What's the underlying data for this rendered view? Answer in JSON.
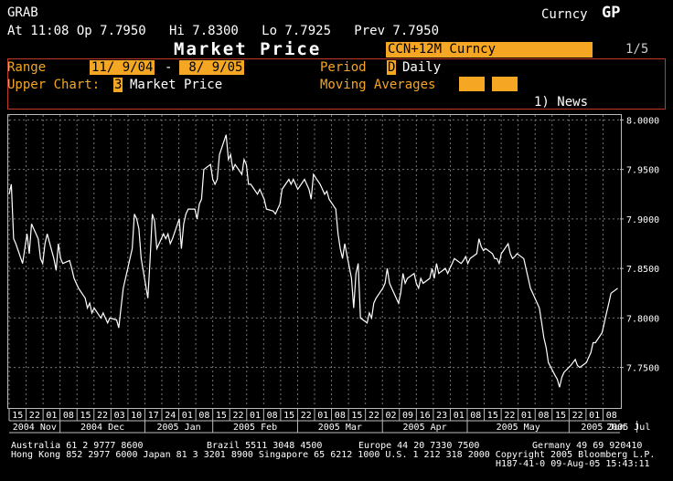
{
  "header": {
    "ticker": "GRAB",
    "security": "Curncy",
    "function": "GP",
    "quote": "At 11:08 Op 7.7950   Hi 7.8300   Lo 7.7925   Prev 7.7950",
    "title": "Market Price",
    "security_box": "CCN+12M Curncy",
    "page": "1/5"
  },
  "controls": {
    "range_label": "Range",
    "range_start": "11/ 9/04",
    "range_sep": "-",
    "range_end": " 8/ 9/05",
    "period_label": "Period",
    "period_code": "D",
    "period_value": "Daily",
    "upper_label": "Upper Chart:",
    "upper_code": "3",
    "upper_value": "Market Price",
    "ma_label": "Moving Averages",
    "news": "1) News"
  },
  "chart_data": {
    "type": "line",
    "y_ticks": [
      "8.0000",
      "7.9500",
      "7.9000",
      "7.8500",
      "7.8000",
      "7.7500"
    ],
    "ylim": [
      7.71,
      8.005
    ],
    "day_ticks": [
      "15",
      "22",
      "01",
      "08",
      "15",
      "22",
      "03",
      "10",
      "17",
      "24",
      "01",
      "08",
      "15",
      "22",
      "01",
      "08",
      "15",
      "22",
      "01",
      "08",
      "15",
      "22",
      "02",
      "09",
      "16",
      "23",
      "01",
      "08",
      "15",
      "22",
      "01",
      "08",
      "15",
      "22",
      "01",
      "08"
    ],
    "months": [
      "2004 Nov",
      "2004 Dec",
      "2005 Jan",
      "2005 Feb",
      "2005 Mar",
      "2005 Apr",
      "2005 May",
      "2005 Jun",
      "2005 Jul"
    ],
    "x_range": [
      "2004-11-09",
      "2005-08-09"
    ],
    "series": [
      {
        "name": "",
        "points": [
          [
            "2004-11-09",
            7.925
          ],
          [
            "2004-11-10",
            7.935
          ],
          [
            "2004-11-11",
            7.88
          ],
          [
            "2004-11-12",
            7.875
          ],
          [
            "2004-11-15",
            7.855
          ],
          [
            "2004-11-16",
            7.87
          ],
          [
            "2004-11-17",
            7.885
          ],
          [
            "2004-11-18",
            7.865
          ],
          [
            "2004-11-19",
            7.895
          ],
          [
            "2004-11-22",
            7.88
          ],
          [
            "2004-11-23",
            7.86
          ],
          [
            "2004-11-24",
            7.855
          ],
          [
            "2004-11-25",
            7.875
          ],
          [
            "2004-11-26",
            7.885
          ],
          [
            "2004-11-29",
            7.86
          ],
          [
            "2004-11-30",
            7.848
          ],
          [
            "2004-12-01",
            7.875
          ],
          [
            "2004-12-02",
            7.86
          ],
          [
            "2004-12-03",
            7.855
          ],
          [
            "2004-12-06",
            7.858
          ],
          [
            "2004-12-07",
            7.85
          ],
          [
            "2004-12-08",
            7.84
          ],
          [
            "2004-12-09",
            7.835
          ],
          [
            "2004-12-10",
            7.83
          ],
          [
            "2004-12-13",
            7.82
          ],
          [
            "2004-12-14",
            7.81
          ],
          [
            "2004-12-15",
            7.815
          ],
          [
            "2004-12-16",
            7.805
          ],
          [
            "2004-12-17",
            7.81
          ],
          [
            "2004-12-20",
            7.8
          ],
          [
            "2004-12-21",
            7.805
          ],
          [
            "2004-12-22",
            7.8
          ],
          [
            "2004-12-23",
            7.795
          ],
          [
            "2004-12-24",
            7.8
          ],
          [
            "2004-12-27",
            7.798
          ],
          [
            "2004-12-28",
            7.79
          ],
          [
            "2004-12-29",
            7.81
          ],
          [
            "2004-12-30",
            7.83
          ],
          [
            "2005-01-03",
            7.87
          ],
          [
            "2005-01-04",
            7.905
          ],
          [
            "2005-01-05",
            7.9
          ],
          [
            "2005-01-06",
            7.89
          ],
          [
            "2005-01-07",
            7.86
          ],
          [
            "2005-01-10",
            7.82
          ],
          [
            "2005-01-11",
            7.86
          ],
          [
            "2005-01-12",
            7.905
          ],
          [
            "2005-01-13",
            7.898
          ],
          [
            "2005-01-14",
            7.87
          ],
          [
            "2005-01-17",
            7.885
          ],
          [
            "2005-01-18",
            7.88
          ],
          [
            "2005-01-19",
            7.885
          ],
          [
            "2005-01-20",
            7.875
          ],
          [
            "2005-01-21",
            7.88
          ],
          [
            "2005-01-24",
            7.9
          ],
          [
            "2005-01-25",
            7.87
          ],
          [
            "2005-01-26",
            7.895
          ],
          [
            "2005-01-27",
            7.905
          ],
          [
            "2005-01-28",
            7.91
          ],
          [
            "2005-01-31",
            7.91
          ],
          [
            "2005-02-01",
            7.9
          ],
          [
            "2005-02-02",
            7.915
          ],
          [
            "2005-02-03",
            7.92
          ],
          [
            "2005-02-04",
            7.95
          ],
          [
            "2005-02-07",
            7.955
          ],
          [
            "2005-02-08",
            7.94
          ],
          [
            "2005-02-09",
            7.935
          ],
          [
            "2005-02-10",
            7.94
          ],
          [
            "2005-02-11",
            7.965
          ],
          [
            "2005-02-14",
            7.985
          ],
          [
            "2005-02-15",
            7.96
          ],
          [
            "2005-02-16",
            7.965
          ],
          [
            "2005-02-17",
            7.95
          ],
          [
            "2005-02-18",
            7.955
          ],
          [
            "2005-02-21",
            7.945
          ],
          [
            "2005-02-22",
            7.96
          ],
          [
            "2005-02-23",
            7.955
          ],
          [
            "2005-02-24",
            7.935
          ],
          [
            "2005-02-25",
            7.935
          ],
          [
            "2005-02-28",
            7.925
          ],
          [
            "2005-03-01",
            7.93
          ],
          [
            "2005-03-02",
            7.925
          ],
          [
            "2005-03-03",
            7.92
          ],
          [
            "2005-03-04",
            7.91
          ],
          [
            "2005-03-07",
            7.908
          ],
          [
            "2005-03-08",
            7.905
          ],
          [
            "2005-03-09",
            7.91
          ],
          [
            "2005-03-10",
            7.915
          ],
          [
            "2005-03-11",
            7.93
          ],
          [
            "2005-03-14",
            7.94
          ],
          [
            "2005-03-15",
            7.935
          ],
          [
            "2005-03-16",
            7.94
          ],
          [
            "2005-03-17",
            7.935
          ],
          [
            "2005-03-18",
            7.93
          ],
          [
            "2005-03-21",
            7.94
          ],
          [
            "2005-03-22",
            7.935
          ],
          [
            "2005-03-23",
            7.93
          ],
          [
            "2005-03-24",
            7.92
          ],
          [
            "2005-03-25",
            7.945
          ],
          [
            "2005-03-28",
            7.935
          ],
          [
            "2005-03-29",
            7.93
          ],
          [
            "2005-03-30",
            7.925
          ],
          [
            "2005-03-31",
            7.928
          ],
          [
            "2005-04-01",
            7.92
          ],
          [
            "2005-04-04",
            7.91
          ],
          [
            "2005-04-05",
            7.885
          ],
          [
            "2005-04-06",
            7.87
          ],
          [
            "2005-04-07",
            7.86
          ],
          [
            "2005-04-08",
            7.875
          ],
          [
            "2005-04-11",
            7.84
          ],
          [
            "2005-04-12",
            7.81
          ],
          [
            "2005-04-13",
            7.845
          ],
          [
            "2005-04-14",
            7.855
          ],
          [
            "2005-04-15",
            7.8
          ],
          [
            "2005-04-18",
            7.795
          ],
          [
            "2005-04-19",
            7.805
          ],
          [
            "2005-04-20",
            7.8
          ],
          [
            "2005-04-21",
            7.815
          ],
          [
            "2005-04-22",
            7.82
          ],
          [
            "2005-04-25",
            7.83
          ],
          [
            "2005-04-26",
            7.835
          ],
          [
            "2005-04-27",
            7.85
          ],
          [
            "2005-04-28",
            7.835
          ],
          [
            "2005-04-29",
            7.83
          ],
          [
            "2005-05-02",
            7.815
          ],
          [
            "2005-05-03",
            7.825
          ],
          [
            "2005-05-04",
            7.845
          ],
          [
            "2005-05-05",
            7.835
          ],
          [
            "2005-05-06",
            7.84
          ],
          [
            "2005-05-09",
            7.845
          ],
          [
            "2005-05-10",
            7.835
          ],
          [
            "2005-05-11",
            7.83
          ],
          [
            "2005-05-12",
            7.84
          ],
          [
            "2005-05-13",
            7.835
          ],
          [
            "2005-05-16",
            7.84
          ],
          [
            "2005-05-17",
            7.85
          ],
          [
            "2005-05-18",
            7.84
          ],
          [
            "2005-05-19",
            7.855
          ],
          [
            "2005-05-20",
            7.845
          ],
          [
            "2005-05-23",
            7.85
          ],
          [
            "2005-05-24",
            7.845
          ],
          [
            "2005-05-25",
            7.85
          ],
          [
            "2005-05-26",
            7.855
          ],
          [
            "2005-05-27",
            7.86
          ],
          [
            "2005-05-30",
            7.855
          ],
          [
            "2005-05-31",
            7.858
          ],
          [
            "2005-06-01",
            7.862
          ],
          [
            "2005-06-02",
            7.855
          ],
          [
            "2005-06-03",
            7.86
          ],
          [
            "2005-06-06",
            7.865
          ],
          [
            "2005-06-07",
            7.88
          ],
          [
            "2005-06-08",
            7.872
          ],
          [
            "2005-06-09",
            7.868
          ],
          [
            "2005-06-10",
            7.87
          ],
          [
            "2005-06-13",
            7.865
          ],
          [
            "2005-06-14",
            7.86
          ],
          [
            "2005-06-15",
            7.86
          ],
          [
            "2005-06-16",
            7.855
          ],
          [
            "2005-06-17",
            7.865
          ],
          [
            "2005-06-20",
            7.875
          ],
          [
            "2005-06-21",
            7.865
          ],
          [
            "2005-06-22",
            7.86
          ],
          [
            "2005-06-23",
            7.862
          ],
          [
            "2005-06-24",
            7.865
          ],
          [
            "2005-06-27",
            7.86
          ],
          [
            "2005-06-28",
            7.85
          ],
          [
            "2005-06-29",
            7.84
          ],
          [
            "2005-06-30",
            7.83
          ],
          [
            "2005-07-01",
            7.825
          ],
          [
            "2005-07-04",
            7.81
          ],
          [
            "2005-07-05",
            7.795
          ],
          [
            "2005-07-06",
            7.78
          ],
          [
            "2005-07-07",
            7.77
          ],
          [
            "2005-07-08",
            7.755
          ],
          [
            "2005-07-11",
            7.742
          ],
          [
            "2005-07-12",
            7.738
          ],
          [
            "2005-07-13",
            7.73
          ],
          [
            "2005-07-14",
            7.74
          ],
          [
            "2005-07-15",
            7.745
          ],
          [
            "2005-07-18",
            7.752
          ],
          [
            "2005-07-19",
            7.755
          ],
          [
            "2005-07-20",
            7.758
          ],
          [
            "2005-07-21",
            7.752
          ],
          [
            "2005-07-22",
            7.75
          ],
          [
            "2005-07-25",
            7.755
          ],
          [
            "2005-07-26",
            7.76
          ],
          [
            "2005-07-27",
            7.765
          ],
          [
            "2005-07-28",
            7.775
          ],
          [
            "2005-07-29",
            7.775
          ],
          [
            "2005-08-01",
            7.785
          ],
          [
            "2005-08-02",
            7.795
          ],
          [
            "2005-08-03",
            7.805
          ],
          [
            "2005-08-04",
            7.815
          ],
          [
            "2005-08-05",
            7.825
          ],
          [
            "2005-08-08",
            7.83
          ]
        ]
      }
    ]
  },
  "footer": {
    "line1_left": "Australia 61 2 9777 8600",
    "line1_mid": "Brazil 5511 3048 4500",
    "line1_right1": "Europe 44 20 7330 7500",
    "line1_right2": "Germany 49 69 920410",
    "line2": "Hong Kong 852 2977 6000 Japan 81 3 3201 8900 Singapore 65 6212 1000 U.S. 1 212 318 2000 Copyright 2005 Bloomberg L.P.",
    "line3": "H187-41-0 09-Aug-05 15:43:11"
  },
  "colors": {
    "accent": "#f5a623",
    "panel_border": "#c0392b"
  }
}
